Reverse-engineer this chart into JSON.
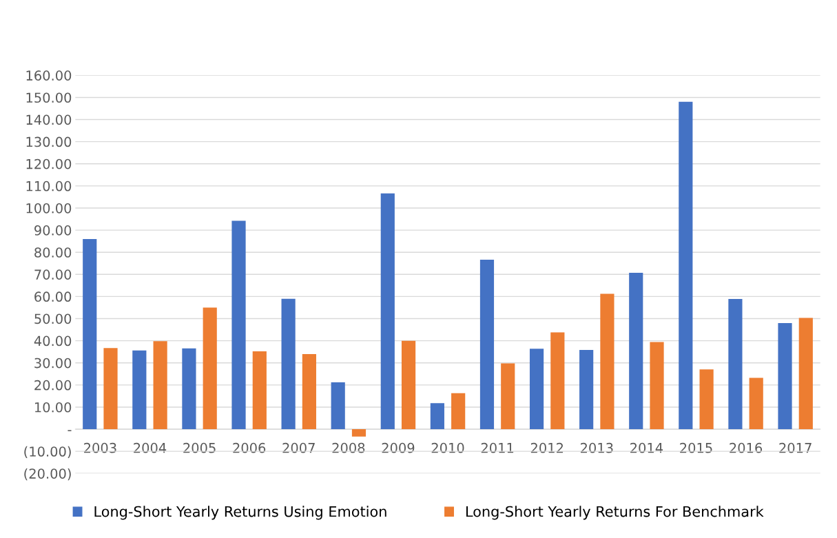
{
  "chart_data": {
    "type": "bar",
    "categories": [
      "2003",
      "2004",
      "2005",
      "2006",
      "2007",
      "2008",
      "2009",
      "2010",
      "2011",
      "2012",
      "2013",
      "2014",
      "2015",
      "2016",
      "2017"
    ],
    "series": [
      {
        "name": "Long-Short Yearly Returns Using Emotion",
        "color": "#4472c4",
        "values": [
          86.0,
          35.6,
          36.5,
          94.2,
          59.0,
          21.2,
          106.6,
          11.8,
          76.6,
          36.4,
          35.8,
          70.7,
          148.0,
          58.9,
          48.0
        ]
      },
      {
        "name": "Long-Short Yearly Returns For Benchmark",
        "color": "#ed7d31",
        "values": [
          36.7,
          39.8,
          55.0,
          35.2,
          34.0,
          -3.3,
          40.0,
          16.3,
          29.8,
          43.8,
          61.2,
          39.4,
          27.0,
          23.2,
          50.3
        ]
      }
    ],
    "ylim": [
      -20,
      160
    ],
    "yticks": [
      {
        "value": -20,
        "label": "(20.00)"
      },
      {
        "value": -10,
        "label": "(10.00)"
      },
      {
        "value": 0,
        "label": "-"
      },
      {
        "value": 10,
        "label": "10.00"
      },
      {
        "value": 20,
        "label": "20.00"
      },
      {
        "value": 30,
        "label": "30.00"
      },
      {
        "value": 40,
        "label": "40.00"
      },
      {
        "value": 50,
        "label": "50.00"
      },
      {
        "value": 60,
        "label": "60.00"
      },
      {
        "value": 70,
        "label": "70.00"
      },
      {
        "value": 80,
        "label": "80.00"
      },
      {
        "value": 90,
        "label": "90.00"
      },
      {
        "value": 100,
        "label": "100.00"
      },
      {
        "value": 110,
        "label": "110.00"
      },
      {
        "value": 120,
        "label": "120.00"
      },
      {
        "value": 130,
        "label": "130.00"
      },
      {
        "value": 140,
        "label": "140.00"
      },
      {
        "value": 150,
        "label": "150.00"
      },
      {
        "value": 160,
        "label": "160.00"
      }
    ],
    "grid": "y",
    "legend": "bottom"
  }
}
